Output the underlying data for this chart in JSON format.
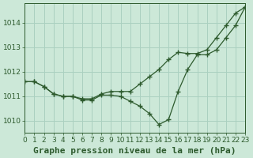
{
  "background_color": "#cce8d8",
  "grid_color": "#aad0c0",
  "line_color": "#2d5a2d",
  "xlim": [
    0,
    23
  ],
  "ylim": [
    1009.5,
    1014.8
  ],
  "yticks": [
    1010,
    1011,
    1012,
    1013,
    1014
  ],
  "xticks": [
    0,
    1,
    2,
    3,
    4,
    5,
    6,
    7,
    8,
    9,
    10,
    11,
    12,
    13,
    14,
    15,
    16,
    17,
    18,
    19,
    20,
    21,
    22,
    23
  ],
  "series1_x": [
    0,
    1,
    2,
    3,
    4,
    5,
    6,
    7,
    8,
    9,
    10,
    11,
    12,
    13,
    14,
    15,
    16,
    17,
    18,
    19,
    20,
    21,
    22,
    23
  ],
  "series1_y": [
    1011.6,
    1011.6,
    1011.4,
    1011.1,
    1011.0,
    1011.0,
    1010.9,
    1010.9,
    1011.1,
    1011.2,
    1011.2,
    1011.2,
    1011.5,
    1011.8,
    1012.1,
    1012.5,
    1012.8,
    1012.75,
    1012.75,
    1012.9,
    1013.4,
    1013.9,
    1014.4,
    1014.65
  ],
  "series2_x": [
    0,
    1,
    2,
    3,
    4,
    5,
    6,
    7,
    8,
    9,
    10,
    11,
    12,
    13,
    14,
    15,
    16,
    17,
    18,
    19,
    20,
    21,
    22,
    23
  ],
  "series2_y": [
    1011.6,
    1011.6,
    1011.4,
    1011.1,
    1011.0,
    1011.0,
    1010.85,
    1010.85,
    1011.05,
    1011.05,
    1011.0,
    1010.8,
    1010.6,
    1010.3,
    1009.85,
    1010.05,
    1011.2,
    1012.1,
    1012.7,
    1012.7,
    1012.9,
    1013.4,
    1013.9,
    1014.65
  ],
  "xlabel": "Graphe pression niveau de la mer (hPa)",
  "xlabel_fontsize": 8,
  "tick_fontsize": 6.5
}
